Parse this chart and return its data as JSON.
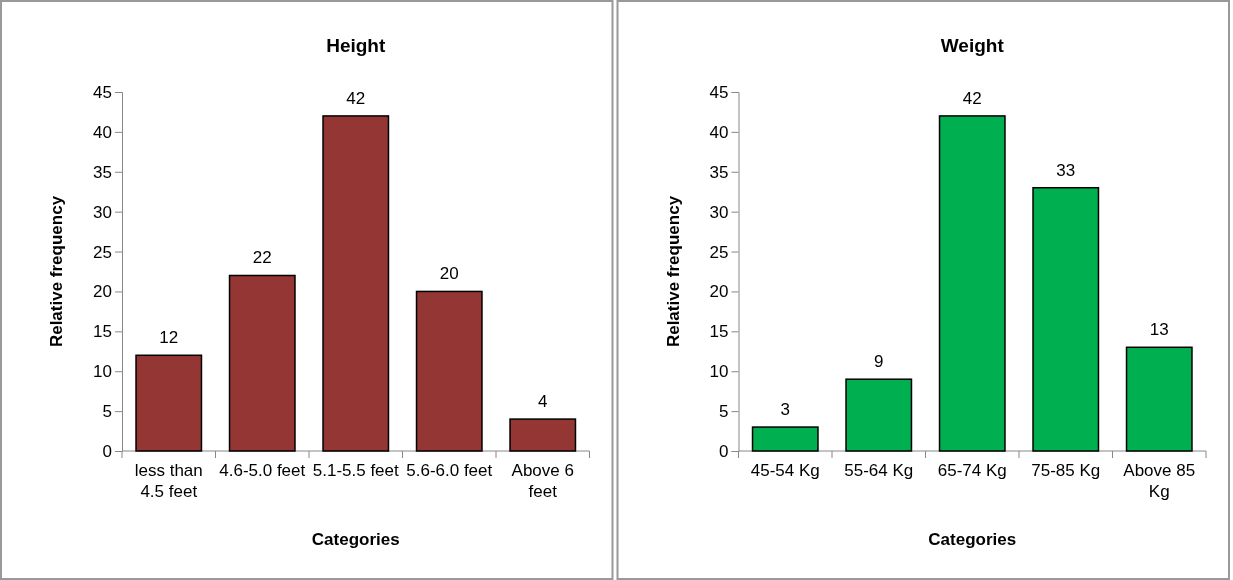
{
  "chart_data": [
    {
      "type": "bar",
      "title": "Height",
      "xlabel": "Categories",
      "ylabel": "Relative frequency",
      "categories": [
        "less than 4.5 feet",
        "4.6-5.0 feet",
        "5.1-5.5 feet",
        "5.6-6.0 feet",
        "Above 6 feet"
      ],
      "values": [
        12,
        22,
        42,
        20,
        4
      ],
      "color": "#943634",
      "ylim": [
        0,
        45
      ],
      "yticks": [
        0,
        5,
        10,
        15,
        20,
        25,
        30,
        35,
        40,
        45
      ],
      "data_labels": true,
      "grid": false,
      "legend": false
    },
    {
      "type": "bar",
      "title": "Weight",
      "xlabel": "Categories",
      "ylabel": "Relative frequency",
      "categories": [
        "45-54 Kg",
        "55-64 Kg",
        "65-74 Kg",
        "75-85 Kg",
        "Above 85 Kg"
      ],
      "values": [
        3,
        9,
        42,
        33,
        13
      ],
      "color": "#00b050",
      "ylim": [
        0,
        45
      ],
      "yticks": [
        0,
        5,
        10,
        15,
        20,
        25,
        30,
        35,
        40,
        45
      ],
      "data_labels": true,
      "grid": false,
      "legend": false
    }
  ]
}
